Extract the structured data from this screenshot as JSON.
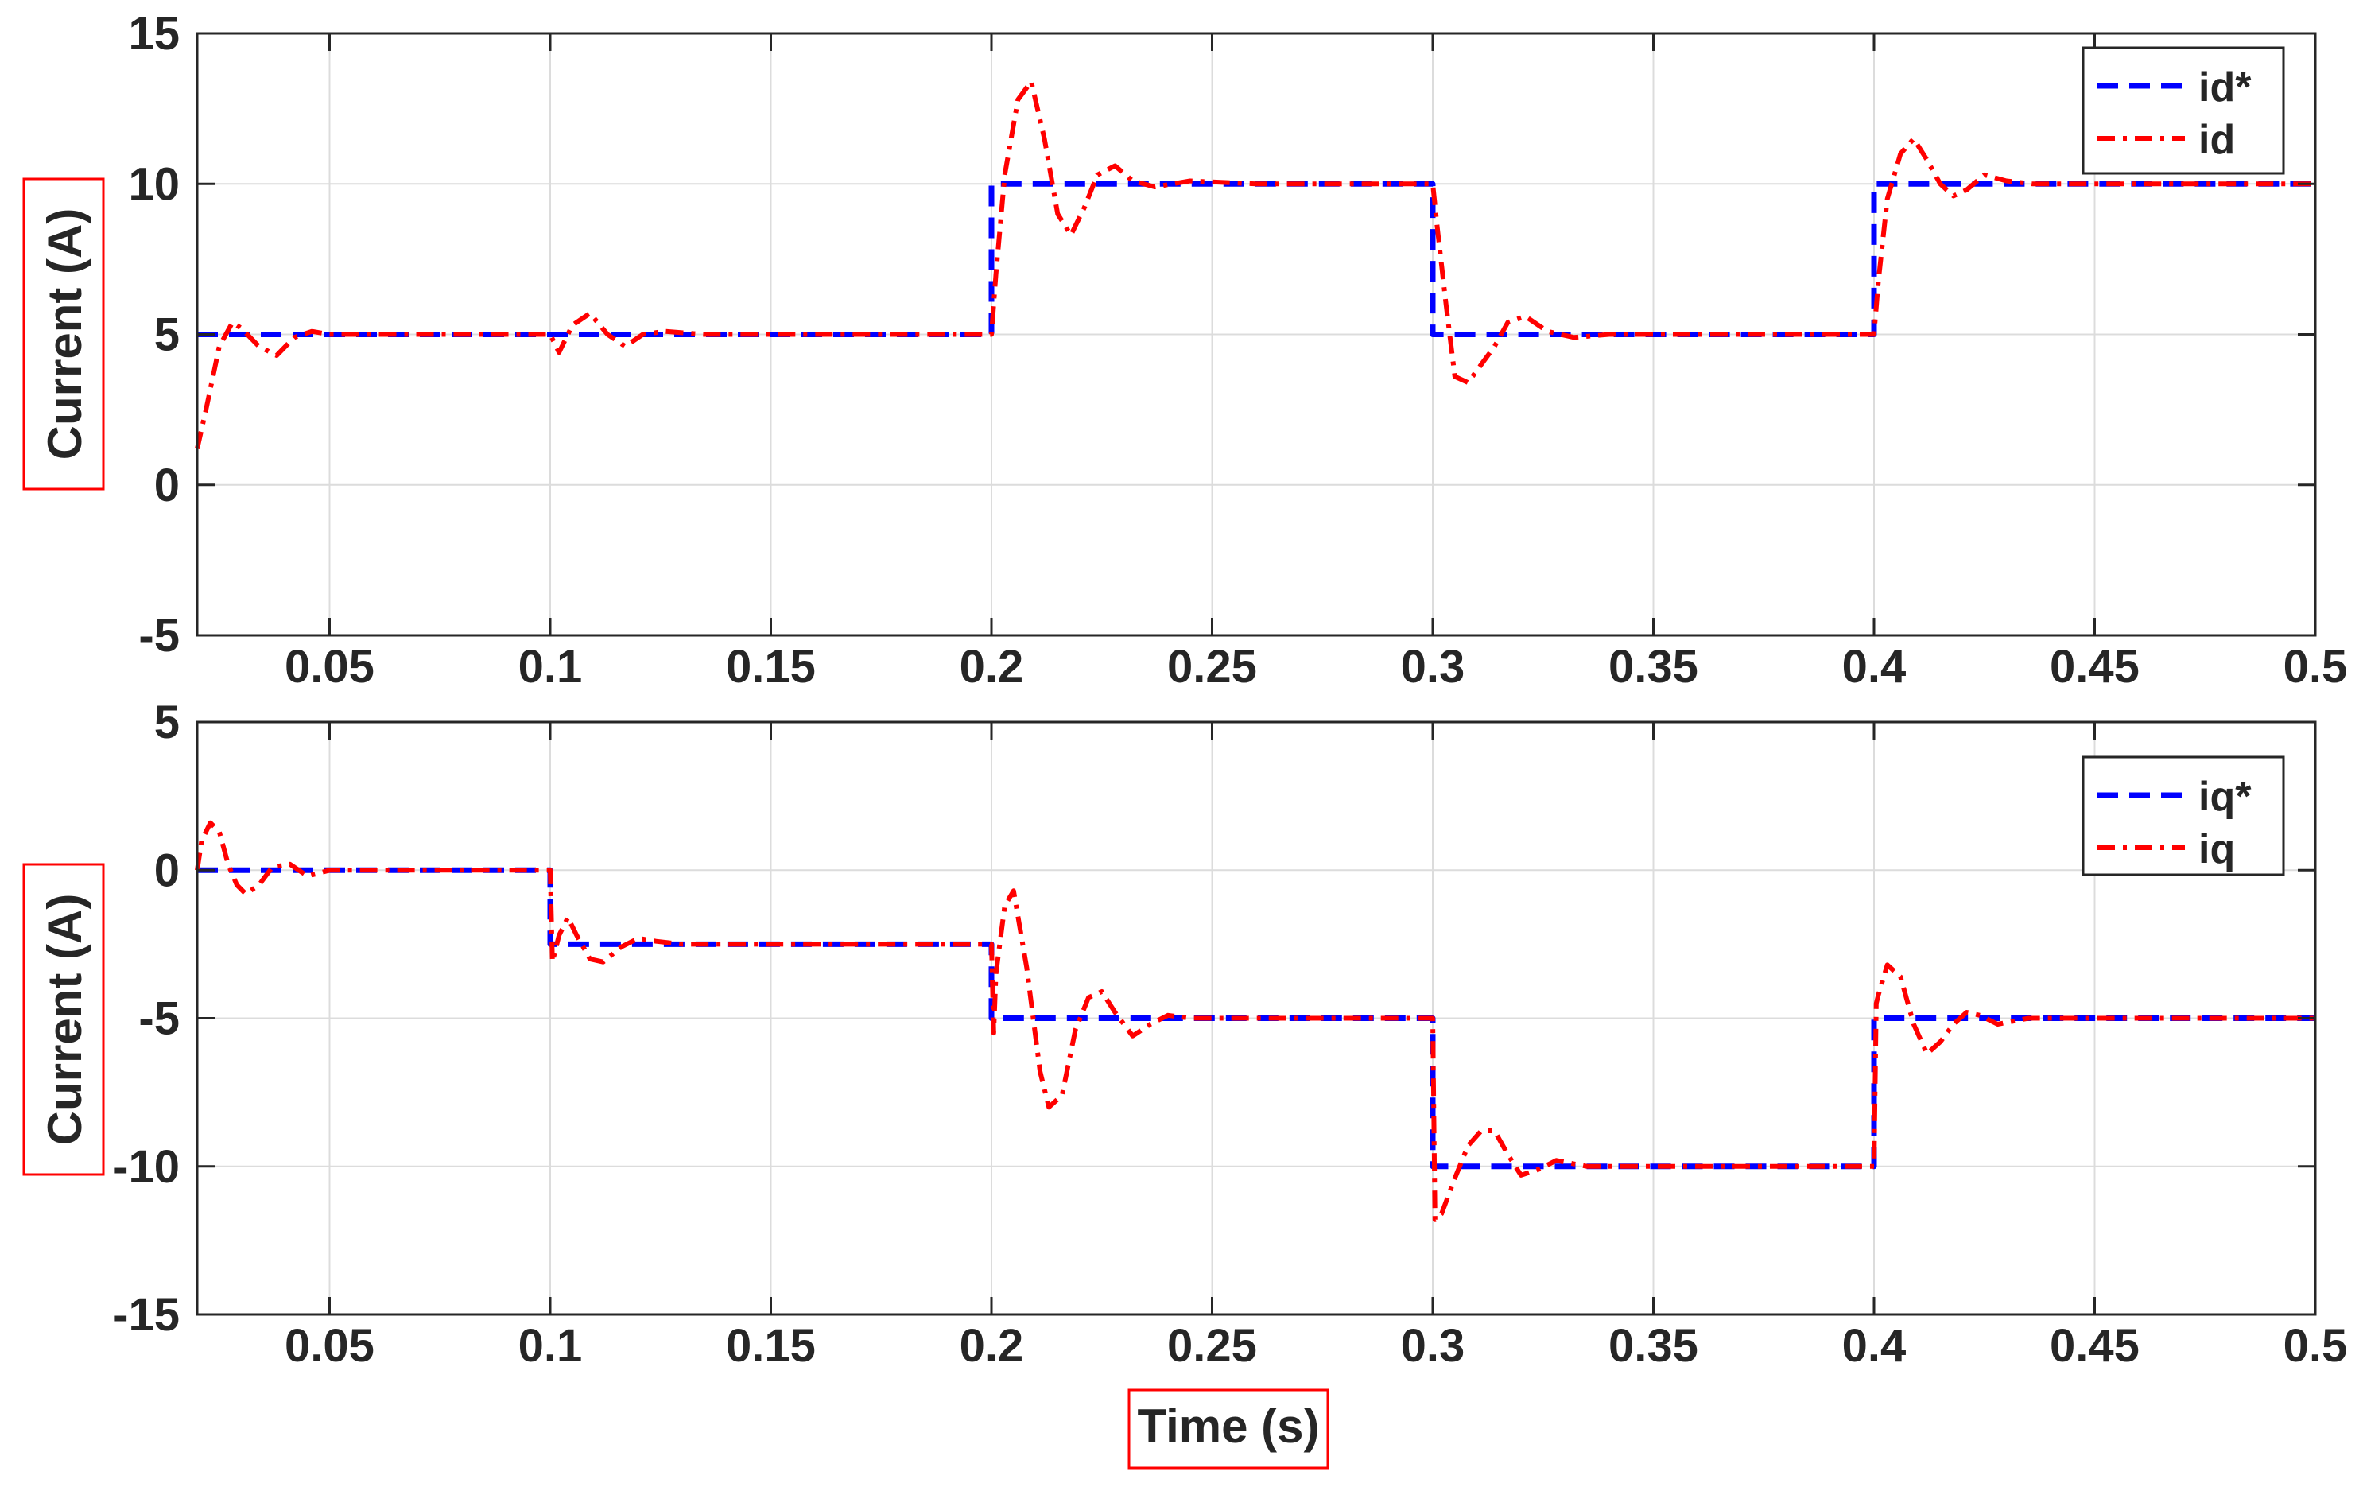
{
  "chart_data": [
    {
      "type": "line",
      "title": "",
      "xlabel": "",
      "ylabel": "Current (A)",
      "xlim": [
        0.02,
        0.5
      ],
      "ylim": [
        -5,
        15
      ],
      "x_ticks": [
        0.05,
        0.1,
        0.15,
        0.2,
        0.25,
        0.3,
        0.35,
        0.4,
        0.45,
        0.5
      ],
      "x_tick_labels": [
        "0.05",
        "0.1",
        "0.15",
        "0.2",
        "0.25",
        "0.3",
        "0.35",
        "0.4",
        "0.45",
        "0.5"
      ],
      "y_ticks": [
        -5,
        0,
        5,
        10,
        15
      ],
      "y_tick_labels": [
        "-5",
        "0",
        "5",
        "10",
        "15"
      ],
      "grid": true,
      "legend_position": "top-right",
      "series": [
        {
          "name": "id*",
          "color": "#0000ff",
          "style": "dashed",
          "x": [
            0.02,
            0.2,
            0.2,
            0.3,
            0.3,
            0.4,
            0.4,
            0.5
          ],
          "y": [
            5,
            5,
            10,
            10,
            5,
            5,
            10,
            10
          ]
        },
        {
          "name": "id",
          "color": "#ff0000",
          "style": "dashdot",
          "x": [
            0.02,
            0.022,
            0.025,
            0.028,
            0.03,
            0.034,
            0.038,
            0.042,
            0.046,
            0.05,
            0.06,
            0.1,
            0.102,
            0.105,
            0.109,
            0.113,
            0.117,
            0.121,
            0.126,
            0.135,
            0.2,
            0.201,
            0.203,
            0.206,
            0.209,
            0.212,
            0.215,
            0.218,
            0.221,
            0.224,
            0.228,
            0.232,
            0.237,
            0.245,
            0.26,
            0.3,
            0.301,
            0.303,
            0.305,
            0.308,
            0.311,
            0.314,
            0.317,
            0.321,
            0.326,
            0.332,
            0.34,
            0.4,
            0.401,
            0.403,
            0.406,
            0.409,
            0.412,
            0.415,
            0.418,
            0.421,
            0.425,
            0.43,
            0.436,
            0.45,
            0.5
          ],
          "y": [
            1.2,
            2.5,
            4.6,
            5.4,
            5.2,
            4.6,
            4.3,
            4.9,
            5.1,
            5.0,
            5.0,
            5.0,
            4.4,
            5.3,
            5.7,
            5.0,
            4.6,
            5.0,
            5.1,
            5.0,
            5.0,
            7.0,
            10.3,
            12.8,
            13.4,
            11.5,
            9.0,
            8.3,
            9.2,
            10.3,
            10.6,
            10.1,
            9.9,
            10.1,
            10.0,
            10.0,
            8.6,
            6.0,
            3.6,
            3.4,
            4.0,
            4.6,
            5.4,
            5.6,
            5.1,
            4.9,
            5.0,
            5.0,
            6.8,
            9.5,
            11.0,
            11.5,
            10.8,
            10.0,
            9.6,
            9.8,
            10.3,
            10.1,
            10.0,
            10.0,
            10.0
          ]
        }
      ]
    },
    {
      "type": "line",
      "title": "",
      "xlabel": "Time (s)",
      "ylabel": "Current (A)",
      "xlim": [
        0.02,
        0.5
      ],
      "ylim": [
        -15,
        5
      ],
      "x_ticks": [
        0.05,
        0.1,
        0.15,
        0.2,
        0.25,
        0.3,
        0.35,
        0.4,
        0.45,
        0.5
      ],
      "x_tick_labels": [
        "0.05",
        "0.1",
        "0.15",
        "0.2",
        "0.25",
        "0.3",
        "0.35",
        "0.4",
        "0.45",
        "0.5"
      ],
      "y_ticks": [
        -15,
        -10,
        -5,
        0,
        5
      ],
      "y_tick_labels": [
        "-15",
        "-10",
        "-5",
        "0",
        "5"
      ],
      "grid": true,
      "legend_position": "top-right",
      "series": [
        {
          "name": "iq*",
          "color": "#0000ff",
          "style": "dashed",
          "x": [
            0.02,
            0.1,
            0.1,
            0.2,
            0.2,
            0.3,
            0.3,
            0.4,
            0.4,
            0.5
          ],
          "y": [
            0,
            0,
            -2.5,
            -2.5,
            -5,
            -5,
            -10,
            -10,
            -5,
            -5
          ]
        },
        {
          "name": "iq",
          "color": "#ff0000",
          "style": "dashdot",
          "x": [
            0.02,
            0.021,
            0.023,
            0.025,
            0.027,
            0.029,
            0.031,
            0.034,
            0.037,
            0.041,
            0.045,
            0.05,
            0.06,
            0.1,
            0.1005,
            0.102,
            0.104,
            0.106,
            0.109,
            0.112,
            0.116,
            0.12,
            0.124,
            0.13,
            0.14,
            0.2,
            0.2005,
            0.201,
            0.203,
            0.205,
            0.208,
            0.211,
            0.213,
            0.216,
            0.219,
            0.222,
            0.225,
            0.228,
            0.232,
            0.236,
            0.24,
            0.245,
            0.26,
            0.3,
            0.3005,
            0.302,
            0.305,
            0.308,
            0.311,
            0.314,
            0.317,
            0.32,
            0.324,
            0.328,
            0.335,
            0.345,
            0.4,
            0.4005,
            0.401,
            0.403,
            0.406,
            0.409,
            0.412,
            0.415,
            0.418,
            0.421,
            0.424,
            0.428,
            0.435,
            0.45,
            0.5
          ],
          "y": [
            0,
            1.0,
            1.6,
            1.3,
            0.2,
            -0.5,
            -0.8,
            -0.5,
            0.1,
            0.2,
            -0.2,
            0.0,
            0.0,
            0.0,
            -3.1,
            -2.2,
            -1.6,
            -2.2,
            -3.0,
            -3.1,
            -2.6,
            -2.3,
            -2.4,
            -2.5,
            -2.5,
            -2.5,
            -5.5,
            -3.5,
            -1.2,
            -0.7,
            -3.3,
            -6.8,
            -8.0,
            -7.6,
            -5.4,
            -4.3,
            -4.1,
            -4.8,
            -5.6,
            -5.2,
            -4.9,
            -5.0,
            -5.0,
            -5.0,
            -11.8,
            -11.6,
            -10.4,
            -9.3,
            -8.8,
            -8.8,
            -9.6,
            -10.3,
            -10.1,
            -9.8,
            -10.0,
            -10.0,
            -10.0,
            -4.5,
            -4.2,
            -3.2,
            -3.6,
            -5.2,
            -6.2,
            -5.8,
            -5.2,
            -4.8,
            -4.9,
            -5.2,
            -5.0,
            -5.0,
            -5.0
          ]
        }
      ]
    }
  ]
}
